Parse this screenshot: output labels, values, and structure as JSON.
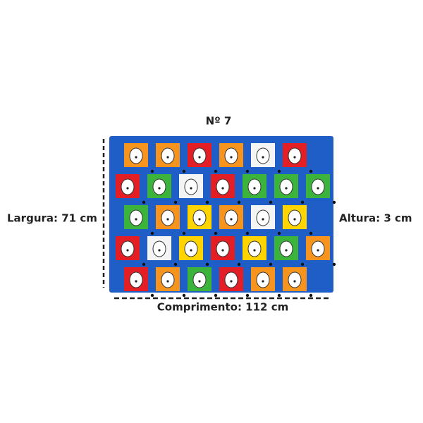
{
  "title": "Nº 7",
  "labels": {
    "width": "Largura: 71 cm",
    "height": "Altura: 3 cm",
    "length": "Comprimento: 112 cm"
  }
}
